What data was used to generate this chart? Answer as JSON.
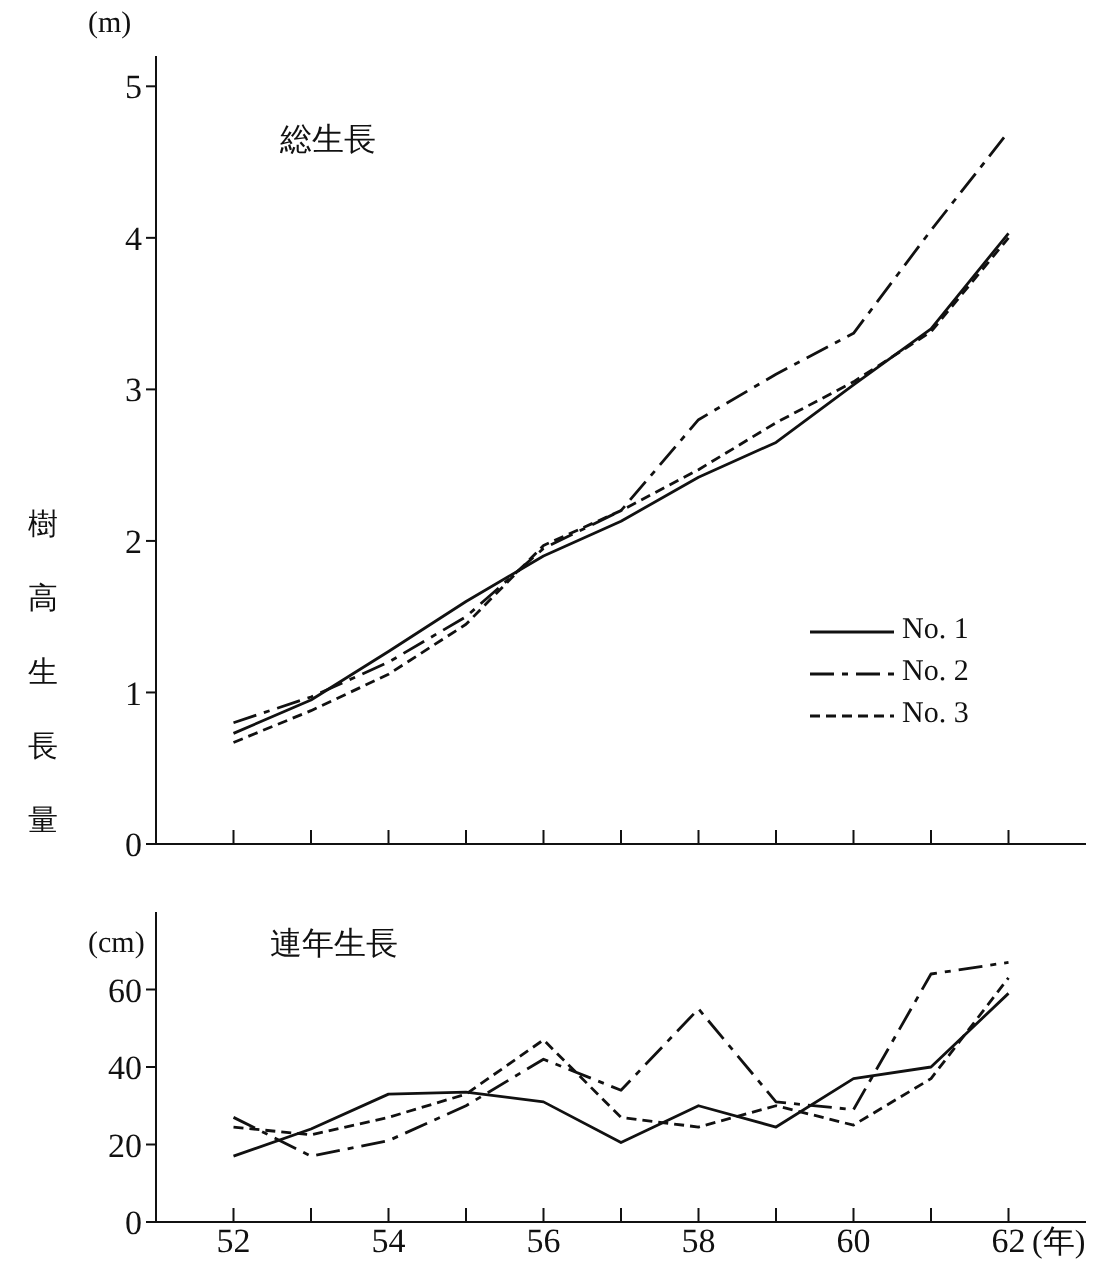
{
  "chart_data": [
    {
      "type": "line",
      "title": "総生長",
      "ylabel": "樹高生長量",
      "annotations": [
        "(m)"
      ],
      "x": [
        52,
        53,
        54,
        55,
        56,
        57,
        58,
        59,
        60,
        61,
        62
      ],
      "series": [
        {
          "name": "No. 1",
          "color": "#111111",
          "line_style": "solid",
          "values": [
            0.73,
            0.95,
            1.27,
            1.6,
            1.9,
            2.13,
            2.42,
            2.65,
            3.03,
            3.4,
            4.03
          ]
        },
        {
          "name": "No. 2",
          "color": "#111111",
          "line_style": "dashed",
          "values": [
            0.8,
            0.97,
            1.2,
            1.5,
            1.95,
            2.2,
            2.8,
            3.1,
            3.37,
            4.05,
            4.7
          ]
        },
        {
          "name": "No. 3",
          "color": "#111111",
          "line_style": "dotted",
          "values": [
            0.67,
            0.88,
            1.12,
            1.45,
            1.97,
            2.2,
            2.47,
            2.78,
            3.05,
            3.38,
            4.0
          ]
        }
      ],
      "xlim": [
        51,
        63
      ],
      "xticks": [
        52,
        53,
        54,
        55,
        56,
        57,
        58,
        59,
        60,
        61,
        62
      ],
      "ylim": [
        0,
        5.2
      ],
      "yticks": [
        0,
        1,
        2,
        3,
        4,
        5
      ],
      "tick_labels": "y",
      "legend": "bottom right"
    },
    {
      "type": "line",
      "title": "連年生長",
      "xlabel": "(年)",
      "annotations": [
        "(cm)"
      ],
      "x": [
        52,
        53,
        54,
        55,
        56,
        57,
        58,
        59,
        60,
        61,
        62
      ],
      "series": [
        {
          "color": "#111111",
          "line_style": "solid",
          "values": [
            17,
            24,
            33,
            33.5,
            31,
            20.5,
            30,
            24.5,
            37,
            40,
            59
          ]
        },
        {
          "color": "#111111",
          "line_style": "dashed",
          "values": [
            27,
            17,
            21,
            30,
            42,
            34,
            55,
            31,
            29,
            64,
            67
          ]
        },
        {
          "color": "#111111",
          "line_style": "dotted",
          "values": [
            24.5,
            22.5,
            27,
            33,
            47,
            27,
            24.5,
            30,
            25,
            37,
            63
          ]
        }
      ],
      "xlim": [
        51,
        63
      ],
      "xticks": [
        52,
        {
          "value": 53,
          "label": null
        },
        54,
        {
          "value": 55,
          "label": null
        },
        56,
        {
          "value": 57,
          "label": null
        },
        58,
        {
          "value": 59,
          "label": null
        },
        60,
        {
          "value": 61,
          "label": null
        },
        62
      ],
      "ylim": [
        0,
        80
      ],
      "yticks": [
        0,
        20,
        40,
        60
      ]
    }
  ]
}
